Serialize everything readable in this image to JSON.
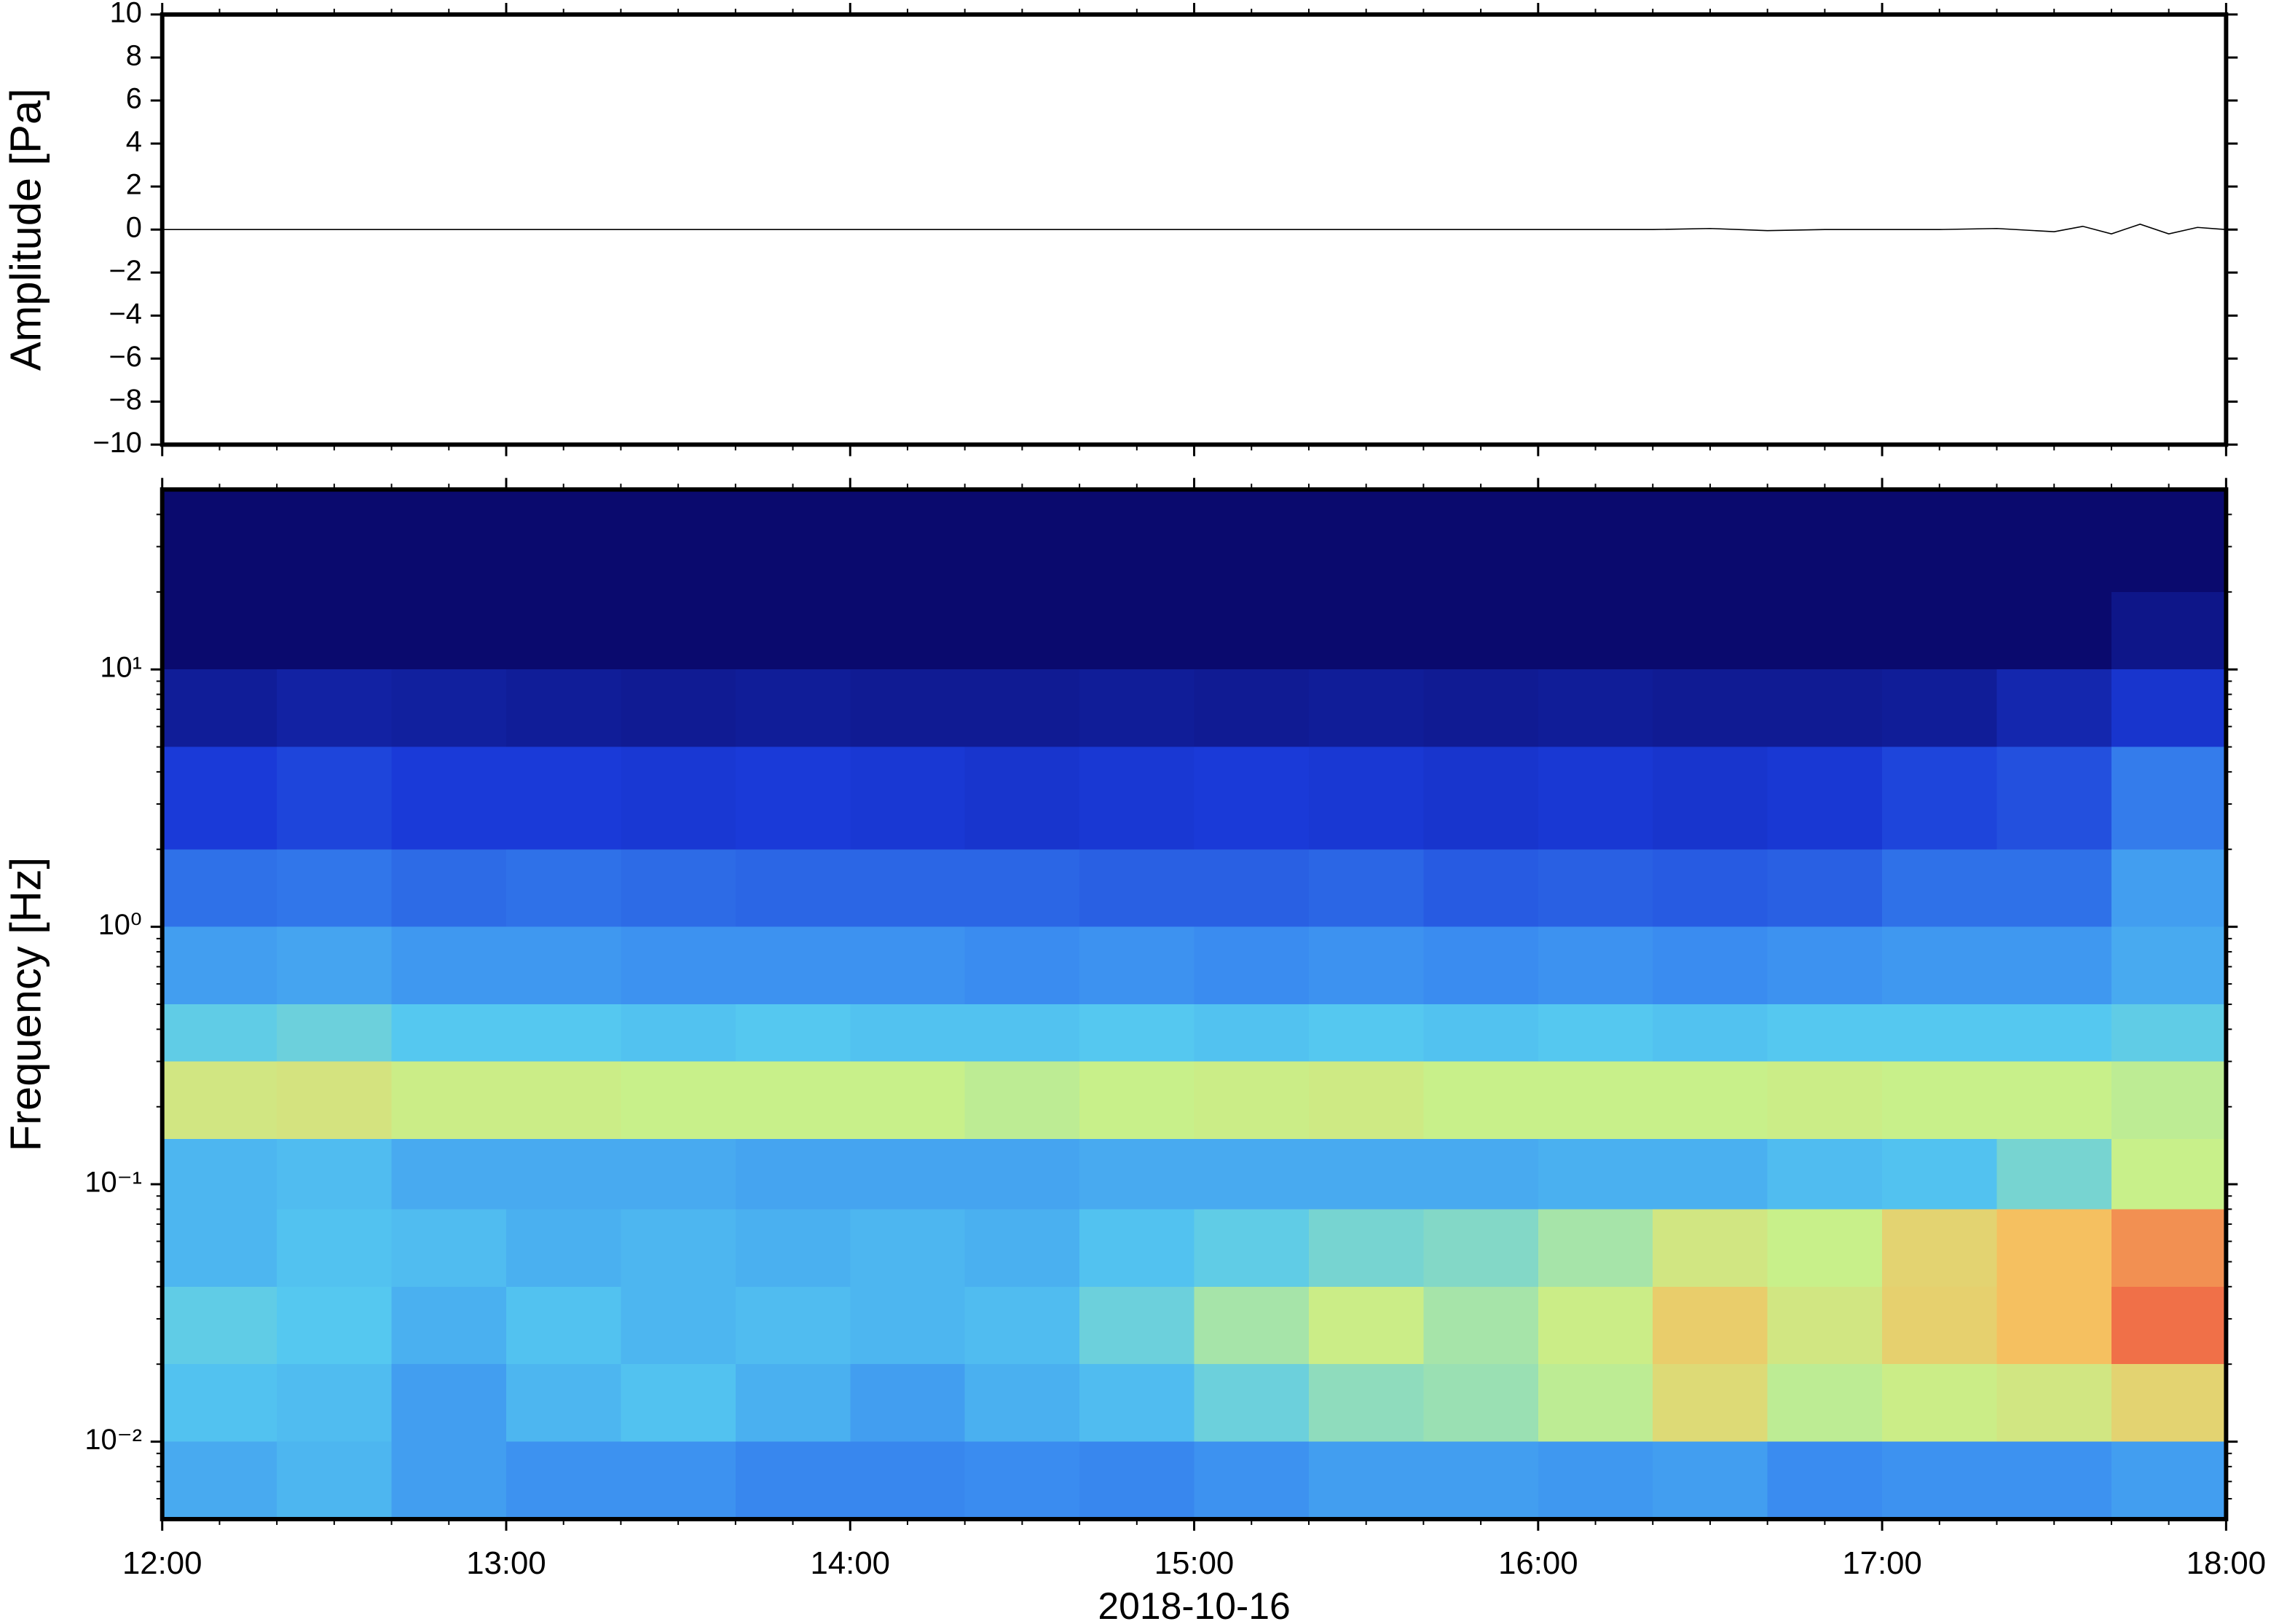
{
  "chart_data": [
    {
      "type": "line",
      "ylabel": "Amplitude [Pa]",
      "xlim": [
        "12:00",
        "18:00"
      ],
      "xticks": [
        "12:00",
        "13:00",
        "14:00",
        "15:00",
        "16:00",
        "17:00",
        "18:00"
      ],
      "ylim": [
        -10,
        10
      ],
      "yticks": [
        {
          "value": -10,
          "label": "−10"
        },
        {
          "value": -8,
          "label": "−8"
        },
        {
          "value": -6,
          "label": "−6"
        },
        {
          "value": -4,
          "label": "−4"
        },
        {
          "value": -2,
          "label": "−2"
        },
        0,
        2,
        4,
        6,
        8,
        10
      ],
      "series": [
        {
          "color": "#000000",
          "x": [
            "12:00",
            "12:10",
            "12:20",
            "12:30",
            "12:40",
            "12:50",
            "13:00",
            "13:10",
            "13:20",
            "13:30",
            "13:40",
            "13:50",
            "14:00",
            "14:10",
            "14:20",
            "14:30",
            "14:40",
            "14:50",
            "15:00",
            "15:10",
            "15:20",
            "15:30",
            "15:40",
            "15:50",
            "16:00",
            "16:10",
            "16:20",
            "16:30",
            "16:40",
            "16:50",
            "17:00",
            "17:10",
            "17:20",
            "17:30",
            "17:35",
            "17:40",
            "17:45",
            "17:50",
            "17:55",
            "18:00"
          ],
          "values": [
            0,
            0,
            0,
            0,
            0,
            0,
            0,
            0,
            0,
            0,
            0,
            0,
            0,
            0,
            0,
            0,
            0,
            0,
            0,
            0,
            0,
            0,
            0,
            0,
            0,
            0,
            0,
            0.05,
            -0.05,
            0,
            0,
            0,
            0.05,
            -0.1,
            0.15,
            -0.2,
            0.25,
            -0.2,
            0.1,
            0
          ]
        }
      ]
    },
    {
      "type": "heatmap",
      "ylabel": "Frequency [Hz]",
      "xlabel": "2018-10-16",
      "log_y": true,
      "xlim": [
        "12:00",
        "18:00"
      ],
      "xticks": [
        "12:00",
        "13:00",
        "14:00",
        "15:00",
        "16:00",
        "17:00",
        "18:00"
      ],
      "ylim": [
        0.005,
        50
      ],
      "yticks": [
        {
          "value": 0.01,
          "label": "10⁻²"
        },
        {
          "value": 0.1,
          "label": "10⁻¹"
        },
        {
          "value": 1,
          "label": "10⁰"
        },
        {
          "value": 10,
          "label": "10¹"
        }
      ],
      "x_edges": [
        "12:00",
        "12:20",
        "12:40",
        "13:00",
        "13:20",
        "13:40",
        "14:00",
        "14:20",
        "14:40",
        "15:00",
        "15:20",
        "15:40",
        "16:00",
        "16:20",
        "16:40",
        "17:00",
        "17:20",
        "17:40",
        "18:00"
      ],
      "y_edges": [
        50,
        20,
        10,
        5,
        2,
        1,
        0.5,
        0.3,
        0.15,
        0.08,
        0.04,
        0.02,
        0.01,
        0.005
      ],
      "zlim": [
        0,
        10
      ],
      "colormap": [
        {
          "value": 0,
          "color": "#0a0a6e"
        },
        {
          "value": 2,
          "color": "#1a3ad8"
        },
        {
          "value": 3.5,
          "color": "#3a8cf0"
        },
        {
          "value": 4.5,
          "color": "#55c8f0"
        },
        {
          "value": 5.5,
          "color": "#c8f08a"
        },
        {
          "value": 7,
          "color": "#f5c060"
        },
        {
          "value": 8,
          "color": "#f07048"
        },
        {
          "value": 10,
          "color": "#c02020"
        }
      ],
      "z": [
        [
          0,
          0,
          0,
          0,
          0,
          0,
          0,
          0,
          0,
          0,
          0,
          0,
          0,
          0,
          0,
          0,
          0,
          0
        ],
        [
          0,
          0,
          0,
          0,
          0,
          0,
          0,
          0,
          0,
          0,
          0,
          0,
          0,
          0,
          0,
          0,
          0,
          0.5
        ],
        [
          0.8,
          1,
          0.9,
          0.8,
          0.7,
          0.8,
          0.7,
          0.7,
          0.8,
          0.7,
          0.8,
          0.7,
          0.8,
          0.7,
          0.7,
          0.8,
          1.2,
          1.8
        ],
        [
          2,
          2.2,
          2,
          2,
          1.9,
          2,
          1.9,
          1.8,
          1.9,
          2,
          1.9,
          1.8,
          1.9,
          1.8,
          1.9,
          2.2,
          2.4,
          3.2
        ],
        [
          3,
          3.1,
          2.9,
          3,
          2.9,
          2.8,
          2.8,
          2.8,
          2.7,
          2.7,
          2.8,
          2.6,
          2.7,
          2.6,
          2.7,
          3,
          3,
          3.8
        ],
        [
          3.8,
          3.9,
          3.7,
          3.7,
          3.6,
          3.6,
          3.6,
          3.5,
          3.6,
          3.5,
          3.6,
          3.5,
          3.6,
          3.5,
          3.6,
          3.7,
          3.7,
          4
        ],
        [
          4.6,
          4.7,
          4.5,
          4.5,
          4.4,
          4.5,
          4.4,
          4.4,
          4.5,
          4.4,
          4.5,
          4.4,
          4.5,
          4.4,
          4.5,
          4.5,
          4.5,
          4.6
        ],
        [
          5.8,
          5.9,
          5.6,
          5.6,
          5.5,
          5.5,
          5.5,
          5.4,
          5.5,
          5.6,
          5.7,
          5.5,
          5.5,
          5.5,
          5.6,
          5.5,
          5.5,
          5.4
        ],
        [
          4.2,
          4.3,
          4,
          4,
          4,
          3.9,
          3.9,
          3.9,
          4,
          4,
          4,
          4,
          4.1,
          4.1,
          4.3,
          4.4,
          4.8,
          5.5
        ],
        [
          4.2,
          4.4,
          4.3,
          4.1,
          4.2,
          4.1,
          4.2,
          4.1,
          4.4,
          4.6,
          4.8,
          4.9,
          5.2,
          5.8,
          5.5,
          6.4,
          7,
          7.6
        ],
        [
          4.6,
          4.5,
          4.1,
          4.4,
          4.2,
          4.3,
          4.2,
          4.3,
          4.7,
          5.2,
          5.6,
          5.2,
          5.6,
          6.6,
          5.8,
          6.5,
          7,
          8
        ],
        [
          4.4,
          4.3,
          3.8,
          4.2,
          4.4,
          4.1,
          3.8,
          4.1,
          4.3,
          4.7,
          5,
          5.1,
          5.4,
          6.2,
          5.4,
          5.6,
          5.8,
          6.4
        ],
        [
          4,
          4.2,
          3.8,
          3.6,
          3.6,
          3.4,
          3.4,
          3.5,
          3.4,
          3.6,
          3.8,
          3.8,
          3.7,
          3.8,
          3.5,
          3.6,
          3.6,
          3.8
        ]
      ]
    }
  ]
}
